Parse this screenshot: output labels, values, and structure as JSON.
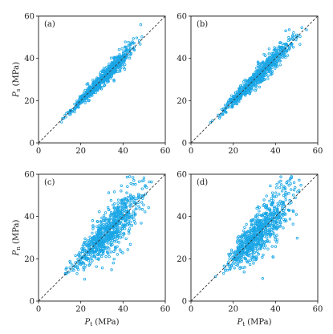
{
  "colors": {
    "marker": "#1aa6e6",
    "axis": "#1a1a1a",
    "reference_line": "#333333",
    "background": "#ffffff"
  },
  "chart_data": [
    {
      "type": "scatter",
      "panel_label": "(a)",
      "xlabel_symbol": "P",
      "xlabel_sub": "t",
      "xlabel_unit": " (MPa)",
      "ylabel_symbol": "P",
      "ylabel_sub": "s",
      "ylabel_unit": " (MPa)",
      "show_xlabel": false,
      "show_ylabel": true,
      "xlim": [
        0,
        60
      ],
      "ylim": [
        0,
        60
      ],
      "xticks": [
        0,
        20,
        40,
        60
      ],
      "yticks": [
        0,
        20,
        40,
        60
      ],
      "reference_line": "y = x (dashed)",
      "grid": false,
      "spread": 0.07,
      "x_range": [
        8,
        52
      ],
      "n_points": 700,
      "seed": 11
    },
    {
      "type": "scatter",
      "panel_label": "(b)",
      "xlabel_symbol": "P",
      "xlabel_sub": "t",
      "xlabel_unit": " (MPa)",
      "ylabel_symbol": "P",
      "ylabel_sub": "s",
      "ylabel_unit": " (MPa)",
      "show_xlabel": false,
      "show_ylabel": false,
      "xlim": [
        0,
        60
      ],
      "ylim": [
        0,
        60
      ],
      "xticks": [
        0,
        20,
        40,
        60
      ],
      "yticks": [
        0,
        20,
        40,
        60
      ],
      "reference_line": "y = x (dashed)",
      "grid": false,
      "spread": 0.08,
      "x_range": [
        8,
        56
      ],
      "n_points": 700,
      "seed": 23
    },
    {
      "type": "scatter",
      "panel_label": "(c)",
      "xlabel_symbol": "P",
      "xlabel_sub": "t",
      "xlabel_unit": " (MPa)",
      "ylabel_symbol": "P",
      "ylabel_sub": "n",
      "ylabel_unit": " (MPa)",
      "show_xlabel": true,
      "show_ylabel": true,
      "xlim": [
        0,
        60
      ],
      "ylim": [
        0,
        60
      ],
      "xticks": [
        0,
        20,
        40,
        60
      ],
      "yticks": [
        0,
        20,
        40,
        60
      ],
      "reference_line": "y = x (dashed)",
      "grid": false,
      "spread": 0.2,
      "x_range": [
        10,
        56
      ],
      "n_points": 750,
      "seed": 37
    },
    {
      "type": "scatter",
      "panel_label": "(d)",
      "xlabel_symbol": "P",
      "xlabel_sub": "t",
      "xlabel_unit": " (MPa)",
      "ylabel_symbol": "P",
      "ylabel_sub": "n",
      "ylabel_unit": " (MPa)",
      "show_xlabel": true,
      "show_ylabel": false,
      "xlim": [
        0,
        60
      ],
      "ylim": [
        0,
        60
      ],
      "xticks": [
        0,
        20,
        40,
        60
      ],
      "yticks": [
        0,
        20,
        40,
        60
      ],
      "reference_line": "y = x (dashed)",
      "grid": false,
      "spread": 0.2,
      "x_range": [
        10,
        54
      ],
      "n_points": 750,
      "seed": 53
    }
  ]
}
